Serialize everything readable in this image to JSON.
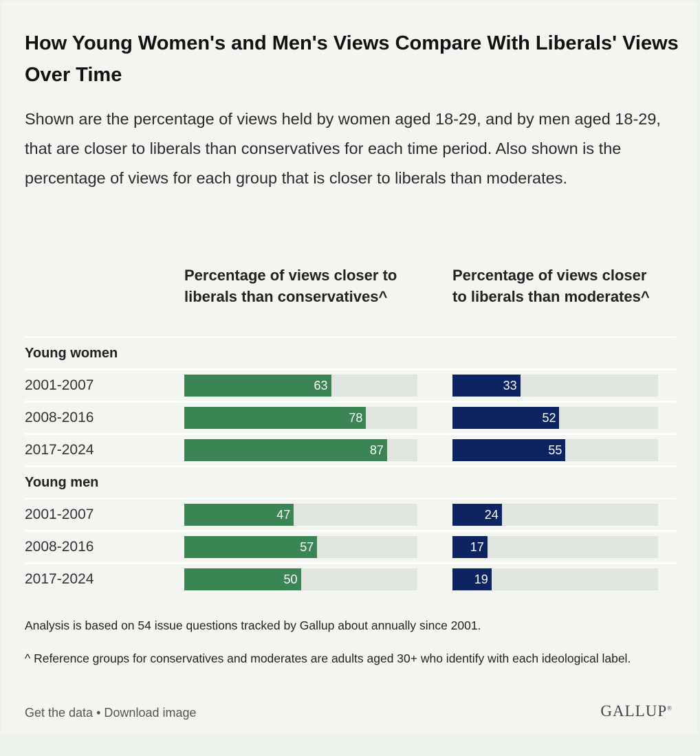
{
  "title": "How Young Women's and Men's Views Compare With Liberals' Views Over Time",
  "subtitle": "Shown are the percentage of views held by women aged 18-29, and by men aged 18-29, that are closer to liberals than conservatives for each time period. Also shown is the percentage of views for each group that is closer to liberals than moderates.",
  "colors": {
    "green": "#3b8453",
    "navy": "#0c2461",
    "track": "#e1e5df"
  },
  "chart_data": {
    "type": "bar",
    "columns": [
      "Percentage of views closer to liberals than conservatives^",
      "Percentage of views closer to liberals than moderates^"
    ],
    "xlim": [
      0,
      100
    ],
    "groups": [
      {
        "label": "Young women",
        "rows": [
          {
            "period": "2001-2007",
            "conservatives": 63,
            "moderates": 33
          },
          {
            "period": "2008-2016",
            "conservatives": 78,
            "moderates": 52
          },
          {
            "period": "2017-2024",
            "conservatives": 87,
            "moderates": 55
          }
        ]
      },
      {
        "label": "Young men",
        "rows": [
          {
            "period": "2001-2007",
            "conservatives": 47,
            "moderates": 24
          },
          {
            "period": "2008-2016",
            "conservatives": 57,
            "moderates": 17
          },
          {
            "period": "2017-2024",
            "conservatives": 50,
            "moderates": 19
          }
        ]
      }
    ]
  },
  "notes": {
    "analysis": "Analysis is based on 54 issue questions tracked by Gallup about annually since 2001.",
    "reference": "^ Reference groups for conservatives and moderates are adults aged 30+ who identify with each ideological label."
  },
  "footer": {
    "get_data": "Get the data",
    "separator": "•",
    "download": "Download image",
    "logo": "GALLUP"
  }
}
